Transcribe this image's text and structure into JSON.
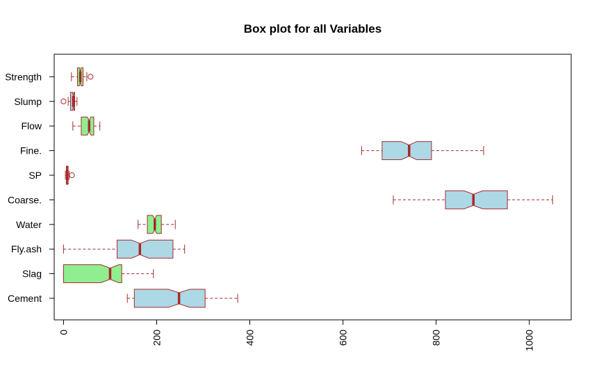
{
  "chart_data": {
    "type": "boxplot",
    "orientation": "horizontal",
    "notched": true,
    "title": "Box plot for all Variables",
    "xlabel": "",
    "ylabel": "",
    "xlim": [
      -20,
      1090
    ],
    "x_ticks": [
      0,
      200,
      400,
      600,
      800,
      1000
    ],
    "x_tick_labels": [
      "0",
      "200",
      "400",
      "600",
      "800",
      "1000"
    ],
    "categories": [
      "Cement",
      "Slag",
      "Fly.ash",
      "Water",
      "Coarse.",
      "SP",
      "Fine.",
      "Flow",
      "Slump",
      "Strength"
    ],
    "boxes": [
      {
        "name": "Cement",
        "whisker_low": 137,
        "q1": 152,
        "median": 248,
        "q3": 304,
        "whisker_high": 374,
        "notch_low": 225,
        "notch_high": 271,
        "outliers": [],
        "fill": "#add8e6"
      },
      {
        "name": "Slag",
        "whisker_low": 0,
        "q1": 0,
        "median": 100,
        "q3": 125,
        "whisker_high": 193,
        "notch_low": 80,
        "notch_high": 119,
        "outliers": [],
        "fill": "#90ee90"
      },
      {
        "name": "Fly.ash",
        "whisker_low": 0,
        "q1": 115,
        "median": 164,
        "q3": 235,
        "whisker_high": 260,
        "notch_low": 146,
        "notch_high": 183,
        "outliers": [],
        "fill": "#add8e6"
      },
      {
        "name": "Water",
        "whisker_low": 160,
        "q1": 180,
        "median": 196,
        "q3": 210,
        "whisker_high": 240,
        "notch_low": 191,
        "notch_high": 200,
        "outliers": [],
        "fill": "#90ee90"
      },
      {
        "name": "Coarse.",
        "whisker_low": 708,
        "q1": 820,
        "median": 880,
        "q3": 953,
        "whisker_high": 1050,
        "notch_low": 860,
        "notch_high": 900,
        "outliers": [],
        "fill": "#add8e6"
      },
      {
        "name": "SP",
        "whisker_low": 4,
        "q1": 6,
        "median": 8,
        "q3": 10,
        "whisker_high": 12,
        "notch_low": 7.4,
        "notch_high": 8.6,
        "outliers": [
          18
        ],
        "fill": "#90ee90"
      },
      {
        "name": "Fine.",
        "whisker_low": 640,
        "q1": 684,
        "median": 742,
        "q3": 790,
        "whisker_high": 902,
        "notch_low": 725,
        "notch_high": 758,
        "outliers": [],
        "fill": "#add8e6"
      },
      {
        "name": "Flow",
        "whisker_low": 20,
        "q1": 38,
        "median": 55,
        "q3": 65,
        "whisker_high": 78,
        "notch_low": 51,
        "notch_high": 59,
        "outliers": [],
        "fill": "#90ee90"
      },
      {
        "name": "Slump",
        "whisker_low": 10,
        "q1": 15,
        "median": 21,
        "q3": 24,
        "whisker_high": 29,
        "notch_low": 19.6,
        "notch_high": 22.4,
        "outliers": [
          0
        ],
        "fill": "#add8e6"
      },
      {
        "name": "Strength",
        "whisker_low": 17,
        "q1": 30,
        "median": 36,
        "q3": 42,
        "whisker_high": 50,
        "notch_low": 34,
        "notch_high": 38,
        "outliers": [
          58
        ],
        "fill": "#90ee90"
      }
    ],
    "grid": false,
    "legend": "none",
    "border_color": "#a52a2a",
    "median_color": "#a52a2a",
    "whisker_color": "#a52a2a"
  }
}
